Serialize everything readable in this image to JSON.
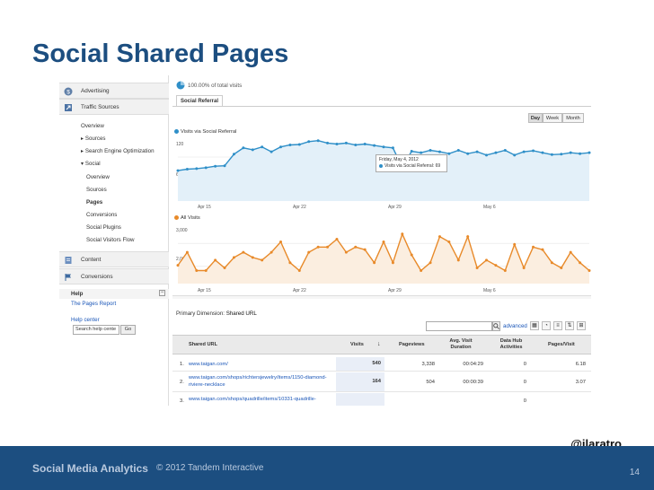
{
  "slide": {
    "title": "Social Shared Pages",
    "handle": "@jlaratro",
    "footer_brand": "Social Media Analytics",
    "footer_copy": "© 2012 Tandem Interactive",
    "page_number": "14"
  },
  "sidebar": {
    "sections": [
      {
        "label": "Advertising",
        "icon": "dollar-circle-icon"
      },
      {
        "label": "Traffic Sources",
        "icon": "traffic-arrow-icon"
      }
    ],
    "items": [
      {
        "label": "Overview"
      },
      {
        "label": "▸ Sources"
      },
      {
        "label": "▸ Search Engine Optimization"
      },
      {
        "label": "▾ Social"
      },
      {
        "label": "Overview"
      },
      {
        "label": "Sources"
      },
      {
        "label": "Pages"
      },
      {
        "label": "Conversions"
      },
      {
        "label": "Social Plugins"
      },
      {
        "label": "Social Visitors Flow"
      }
    ],
    "content_label": "Content",
    "conversions_label": "Conversions",
    "help": {
      "title": "Help",
      "link": "The Pages Report",
      "center": "Help center",
      "search_placeholder": "Search help cente",
      "go_label": "Go"
    }
  },
  "main": {
    "segment_text": "100.00% of total visits",
    "tab_label": "Social Referral",
    "range_buttons": [
      "Day",
      "Week",
      "Month"
    ],
    "active_range": "Day",
    "primary_dimension_label": "Primary Dimension:",
    "primary_dimension_value": "Shared URL",
    "advanced_label": "advanced",
    "search_value": ""
  },
  "chart_data": [
    {
      "type": "line",
      "series": [
        {
          "name": "Visits via Social Referral",
          "values": [
            63,
            66,
            67,
            69,
            72,
            73,
            97,
            110,
            106,
            112,
            102,
            112,
            116,
            117,
            123,
            125,
            120,
            118,
            120,
            116,
            118,
            115,
            112,
            110,
            69,
            103,
            100,
            105,
            102,
            98,
            105,
            98,
            102,
            95,
            100,
            105,
            95,
            102,
            104,
            100,
            96,
            97,
            100,
            98,
            100
          ]
        }
      ],
      "yticks": [
        "120",
        "60"
      ],
      "x_ticks": [
        "Apr 15",
        "Apr 22",
        "Apr 29",
        "May 6"
      ],
      "tooltip": {
        "date": "Friday, May 4, 2012",
        "label": "Visits via Social Referral: 69"
      },
      "color": "#2f8fc8",
      "ylim": [
        0,
        130
      ]
    },
    {
      "type": "line",
      "series": [
        {
          "name": "All Visits",
          "values": [
            2200,
            2700,
            2000,
            2000,
            2400,
            2100,
            2500,
            2700,
            2500,
            2400,
            2700,
            3100,
            2300,
            2000,
            2700,
            2900,
            2900,
            3200,
            2700,
            2900,
            2800,
            2300,
            3100,
            2300,
            3400,
            2600,
            2000,
            2300,
            3300,
            3100,
            2400,
            3300,
            2100,
            2400,
            2200,
            2000,
            3000,
            2100,
            2900,
            2800,
            2300,
            2100,
            2700,
            2300,
            2000
          ]
        }
      ],
      "yticks": [
        "3,000",
        "2,000"
      ],
      "x_ticks": [
        "Apr 15",
        "Apr 22",
        "Apr 29",
        "May 6"
      ],
      "color": "#e88a2a",
      "ylim": [
        1500,
        3700
      ]
    },
    {
      "type": "table",
      "columns": [
        "Shared URL",
        "Visits",
        "Pageviews",
        "Avg. Visit Duration",
        "Data Hub Activities",
        "Pages/Visit"
      ],
      "rows": [
        {
          "n": "1.",
          "url": "www.taigan.com/",
          "visits": "540",
          "pageviews": "3,338",
          "duration": "00:04:29",
          "activities": "0",
          "ppv": "6.18"
        },
        {
          "n": "2.",
          "url": "www.taigan.com/shops/richtersjewelry/items/1150-diamond-riviere-necklace",
          "visits": "164",
          "pageviews": "504",
          "duration": "00:00:39",
          "activities": "0",
          "ppv": "3.07"
        },
        {
          "n": "3.",
          "url": "www.taigan.com/shops/quadrille/items/10331-quadrille-",
          "visits": "",
          "pageviews": "",
          "duration": "",
          "activities": "0",
          "ppv": ""
        }
      ]
    }
  ]
}
